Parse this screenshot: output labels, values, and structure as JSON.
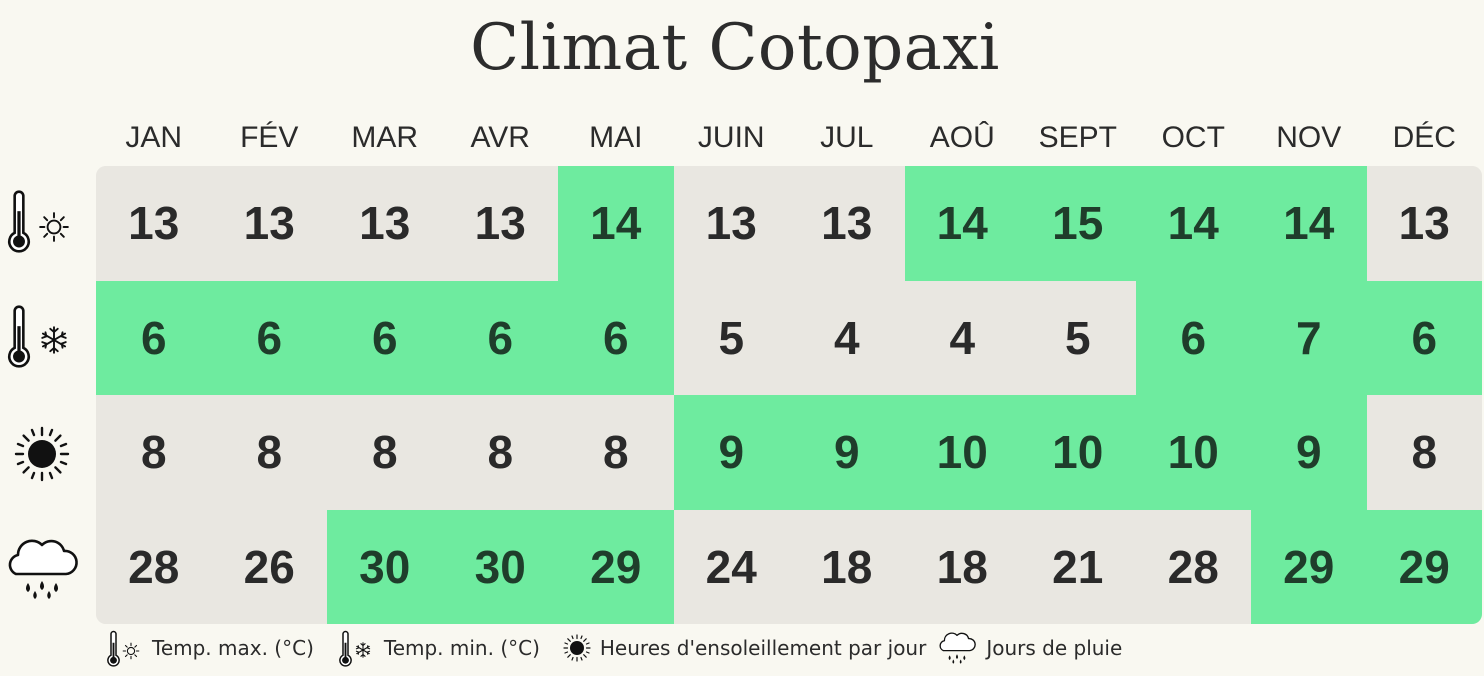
{
  "title": "Climat Cotopaxi",
  "chart_data": {
    "type": "table",
    "title": "Climat Cotopaxi",
    "categories": [
      "JAN",
      "FÉV",
      "MAR",
      "AVR",
      "MAI",
      "JUIN",
      "JUL",
      "AOÛ",
      "SEPT",
      "OCT",
      "NOV",
      "DÉC"
    ],
    "series": [
      {
        "name": "Temp. max. (°C)",
        "icon": "thermometer-sun-icon",
        "values": [
          13,
          13,
          13,
          13,
          14,
          13,
          13,
          14,
          15,
          14,
          14,
          13
        ],
        "highlighted": [
          false,
          false,
          false,
          false,
          true,
          false,
          false,
          true,
          true,
          true,
          true,
          false
        ]
      },
      {
        "name": "Temp. min. (°C)",
        "icon": "thermometer-snow-icon",
        "values": [
          6,
          6,
          6,
          6,
          6,
          5,
          4,
          4,
          5,
          6,
          7,
          6
        ],
        "highlighted": [
          true,
          true,
          true,
          true,
          true,
          false,
          false,
          false,
          false,
          true,
          true,
          true
        ]
      },
      {
        "name": "Heures d'ensoleillement par jour",
        "icon": "sun-icon",
        "values": [
          8,
          8,
          8,
          8,
          8,
          9,
          9,
          10,
          10,
          10,
          9,
          8
        ],
        "highlighted": [
          false,
          false,
          false,
          false,
          false,
          true,
          true,
          true,
          true,
          true,
          true,
          false
        ]
      },
      {
        "name": "Jours de pluie",
        "icon": "rain-cloud-icon",
        "values": [
          28,
          26,
          30,
          30,
          29,
          24,
          18,
          18,
          21,
          28,
          29,
          29
        ],
        "highlighted": [
          false,
          false,
          true,
          true,
          true,
          false,
          false,
          false,
          false,
          false,
          true,
          true
        ]
      }
    ],
    "colors": {
      "highlight": "#6eeb9f",
      "neutral": "#e9e7e1",
      "background": "#f9f8f1"
    }
  },
  "legend": [
    {
      "label": "Temp. max. (°C)",
      "icon": "thermometer-sun-icon"
    },
    {
      "label": "Temp. min. (°C)",
      "icon": "thermometer-snow-icon"
    },
    {
      "label": "Heures d'ensoleillement par jour",
      "icon": "sun-icon"
    },
    {
      "label": "Jours de pluie",
      "icon": "rain-cloud-icon"
    }
  ]
}
